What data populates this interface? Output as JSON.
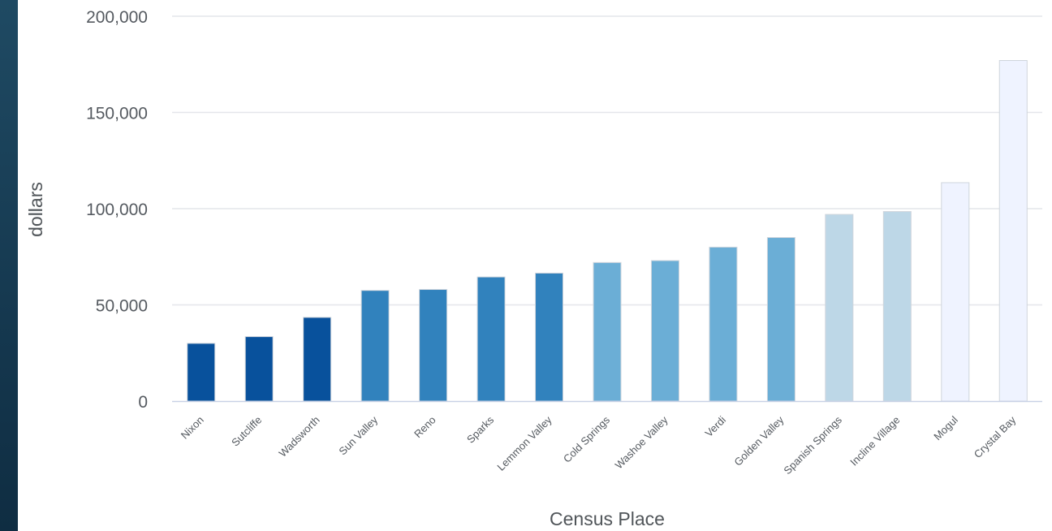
{
  "chart_data": {
    "type": "bar",
    "title": "",
    "xlabel": "Census Place",
    "ylabel": "dollars",
    "ylim": [
      0,
      200000
    ],
    "yticks": [
      0,
      50000,
      100000,
      150000,
      200000
    ],
    "ytick_labels": [
      "0",
      "50,000",
      "100,000",
      "150,000",
      "200,000"
    ],
    "grid": true,
    "categories": [
      "Nixon",
      "Sutcliffe",
      "Wadsworth",
      "Sun Valley",
      "Reno",
      "Sparks",
      "Lemmon Valley",
      "Cold Springs",
      "Washoe Valley",
      "Verdi",
      "Golden Valley",
      "Spanish Springs",
      "Incline Village",
      "Mogul",
      "Crystal Bay"
    ],
    "values": [
      30000,
      33500,
      43500,
      57500,
      58000,
      64500,
      66500,
      72000,
      73000,
      80000,
      85000,
      97000,
      98500,
      113500,
      177000
    ],
    "bar_colors": [
      "#08519c",
      "#08519c",
      "#08519c",
      "#3182bd",
      "#3182bd",
      "#3182bd",
      "#3182bd",
      "#6baed6",
      "#6baed6",
      "#6baed6",
      "#6baed6",
      "#bdd7e7",
      "#bdd7e7",
      "#eff3ff",
      "#eff3ff"
    ]
  }
}
